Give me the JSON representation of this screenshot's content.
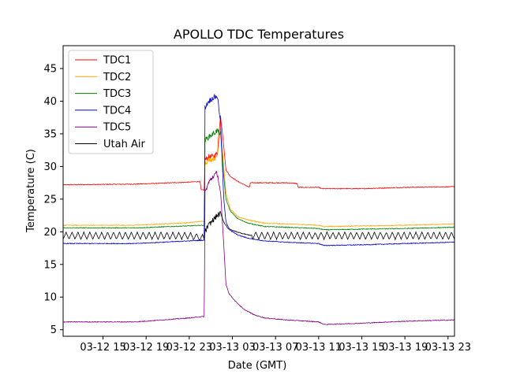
{
  "chart_data": {
    "type": "line",
    "title": "APOLLO TDC Temperatures",
    "xlabel": "Date (GMT)",
    "ylabel": "Temperature (C)",
    "x_units": "hours since 03-12 15",
    "xlim": [
      -3.7,
      32.6
    ],
    "ylim": [
      4,
      48.5
    ],
    "x_ticks": [
      {
        "x": 0,
        "label": "03-12 15"
      },
      {
        "x": 4,
        "label": "03-12 19"
      },
      {
        "x": 8,
        "label": "03-12 23"
      },
      {
        "x": 12,
        "label": "03-13 03"
      },
      {
        "x": 16,
        "label": "03-13 07"
      },
      {
        "x": 20,
        "label": "03-13 11"
      },
      {
        "x": 24,
        "label": "03-13 15"
      },
      {
        "x": 28,
        "label": "03-13 19"
      },
      {
        "x": 32,
        "label": "03-13 23"
      }
    ],
    "y_ticks": [
      {
        "y": 5,
        "label": "5"
      },
      {
        "y": 10,
        "label": "10"
      },
      {
        "y": 15,
        "label": "15"
      },
      {
        "y": 20,
        "label": "20"
      },
      {
        "y": 25,
        "label": "25"
      },
      {
        "y": 30,
        "label": "30"
      },
      {
        "y": 35,
        "label": "35"
      },
      {
        "y": 40,
        "label": "40"
      },
      {
        "y": 45,
        "label": "45"
      }
    ],
    "legend_position": "top-left",
    "series": [
      {
        "name": "TDC1",
        "color": "#ff0000",
        "x": [
          -3.7,
          3.0,
          8.0,
          9.0,
          9.1,
          9.4,
          9.45,
          9.8,
          10.2,
          10.6,
          10.9,
          11.2,
          11.4,
          11.8,
          12.5,
          13.6,
          13.65,
          17.0,
          18.0,
          18.1,
          20.0,
          20.3,
          24.0,
          28.0,
          32.6
        ],
        "y": [
          27.2,
          27.3,
          27.6,
          27.7,
          26.4,
          26.4,
          31.0,
          31.5,
          31.5,
          32.0,
          38.0,
          33.0,
          29.5,
          28.5,
          27.7,
          26.8,
          27.5,
          27.5,
          27.4,
          26.8,
          26.8,
          26.6,
          26.6,
          26.8,
          26.9
        ]
      },
      {
        "name": "TDC2",
        "color": "#ffa500",
        "x": [
          -3.7,
          3.0,
          8.0,
          9.1,
          9.4,
          9.45,
          9.8,
          10.2,
          10.6,
          10.9,
          11.2,
          11.4,
          11.8,
          12.5,
          13.5,
          15.0,
          17.0,
          20.0,
          20.5,
          24.0,
          28.0,
          32.6
        ],
        "y": [
          21.0,
          21.0,
          21.4,
          21.6,
          21.6,
          30.5,
          31.0,
          31.2,
          31.5,
          36.0,
          30.0,
          26.0,
          23.5,
          22.3,
          21.8,
          21.3,
          21.2,
          21.0,
          20.8,
          20.9,
          21.0,
          21.2
        ]
      },
      {
        "name": "TDC3",
        "color": "#008000",
        "x": [
          -3.7,
          3.0,
          8.0,
          9.1,
          9.4,
          9.45,
          9.8,
          10.2,
          10.6,
          10.9,
          11.2,
          11.4,
          11.8,
          12.5,
          13.5,
          15.0,
          17.0,
          20.0,
          20.5,
          24.0,
          28.0,
          32.6
        ],
        "y": [
          20.6,
          20.6,
          20.9,
          21.0,
          21.0,
          34.0,
          34.5,
          35.0,
          35.5,
          35.0,
          28.5,
          25.0,
          23.2,
          22.0,
          21.3,
          20.8,
          20.7,
          20.5,
          20.3,
          20.4,
          20.5,
          20.7
        ]
      },
      {
        "name": "TDC4",
        "color": "#0000cd",
        "x": [
          -3.7,
          3.0,
          8.0,
          9.1,
          9.4,
          9.45,
          9.8,
          10.2,
          10.6,
          10.9,
          11.2,
          11.4,
          11.8,
          12.5,
          13.5,
          15.0,
          17.0,
          20.0,
          20.5,
          24.0,
          28.0,
          32.6
        ],
        "y": [
          18.2,
          18.2,
          18.6,
          18.7,
          18.7,
          39.0,
          40.0,
          40.5,
          40.8,
          37.0,
          25.0,
          21.5,
          20.2,
          19.5,
          19.0,
          18.6,
          18.4,
          18.2,
          17.9,
          18.0,
          18.2,
          18.4
        ]
      },
      {
        "name": "TDC5",
        "color": "#800080",
        "x": [
          -3.7,
          3.0,
          8.0,
          9.1,
          9.4,
          9.45,
          9.8,
          10.2,
          10.6,
          10.9,
          11.2,
          11.4,
          11.7,
          12.2,
          13.0,
          14.0,
          15.0,
          17.0,
          20.0,
          20.5,
          24.0,
          28.0,
          32.6
        ],
        "y": [
          6.2,
          6.2,
          6.8,
          7.0,
          7.0,
          26.0,
          27.5,
          28.5,
          29.0,
          26.0,
          18.0,
          12.0,
          10.5,
          9.5,
          8.2,
          7.3,
          6.8,
          6.5,
          6.2,
          5.8,
          6.0,
          6.3,
          6.5
        ]
      },
      {
        "name": "Utah Air",
        "color": "#000000",
        "x": [
          -3.7,
          8.0,
          9.4,
          9.45,
          9.8,
          10.2,
          10.6,
          10.9,
          11.2,
          11.6,
          12.0,
          12.4,
          12.8,
          13.5,
          14.5,
          32.6
        ],
        "y": [
          19.4,
          19.4,
          19.0,
          20.0,
          21.0,
          21.8,
          22.5,
          22.8,
          21.5,
          20.5,
          20.2,
          20.0,
          19.8,
          19.5,
          19.4,
          19.4
        ],
        "oscillation": {
          "amplitude": 0.55,
          "period": 0.55,
          "from": -3.7,
          "to": 32.6
        }
      }
    ]
  }
}
